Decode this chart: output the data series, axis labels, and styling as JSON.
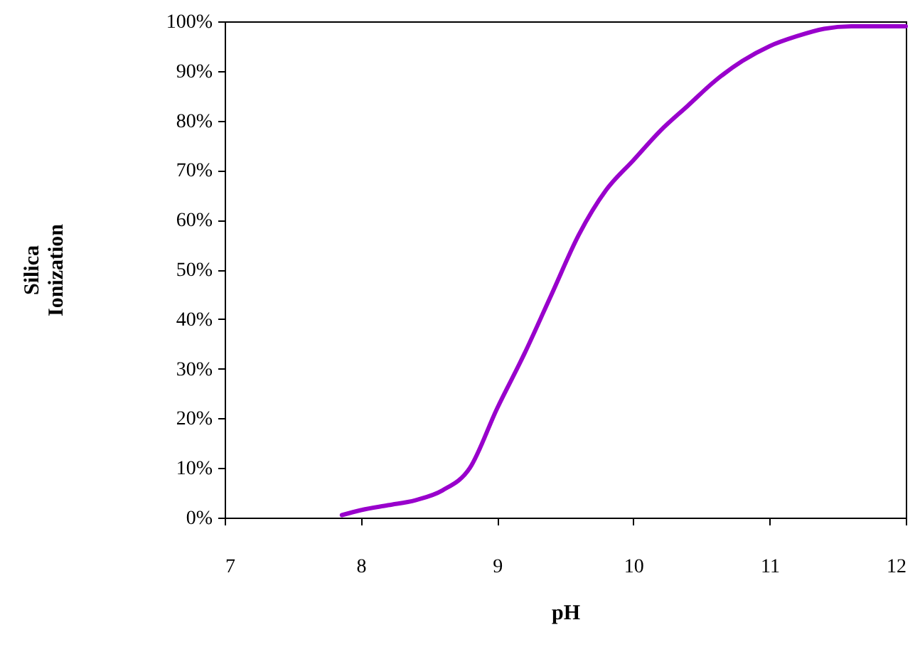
{
  "chart_data": {
    "type": "line",
    "xlabel": "pH",
    "ylabel": "Silica\nIonization",
    "x": [
      7.86,
      8.0,
      8.2,
      8.4,
      8.6,
      8.8,
      9.0,
      9.2,
      9.4,
      9.6,
      9.8,
      10.0,
      10.2,
      10.4,
      10.6,
      10.8,
      11.0,
      11.2,
      11.4,
      11.6,
      12.0
    ],
    "series": [
      {
        "color": "#9900cc",
        "values": [
          0.5,
          1.5,
          2.5,
          3.5,
          5.5,
          10,
          22,
          33,
          45,
          57,
          66,
          72,
          78,
          83,
          88,
          92,
          95,
          97,
          98.5,
          99,
          99
        ]
      }
    ],
    "xlim": [
      7,
      12
    ],
    "xticks": [
      7,
      8,
      9,
      10,
      11,
      12
    ],
    "ylim": [
      0,
      100
    ],
    "yticks": [
      {
        "value": 0,
        "label": "0%"
      },
      {
        "value": 10,
        "label": "10%"
      },
      {
        "value": 20,
        "label": "20%"
      },
      {
        "value": 30,
        "label": "30%"
      },
      {
        "value": 40,
        "label": "40%"
      },
      {
        "value": 50,
        "label": "50%"
      },
      {
        "value": 60,
        "label": "60%"
      },
      {
        "value": 70,
        "label": "70%"
      },
      {
        "value": 80,
        "label": "80%"
      },
      {
        "value": 90,
        "label": "90%"
      },
      {
        "value": 100,
        "label": "100%"
      }
    ],
    "grid": false,
    "marker": "none",
    "line_style": "solid"
  }
}
